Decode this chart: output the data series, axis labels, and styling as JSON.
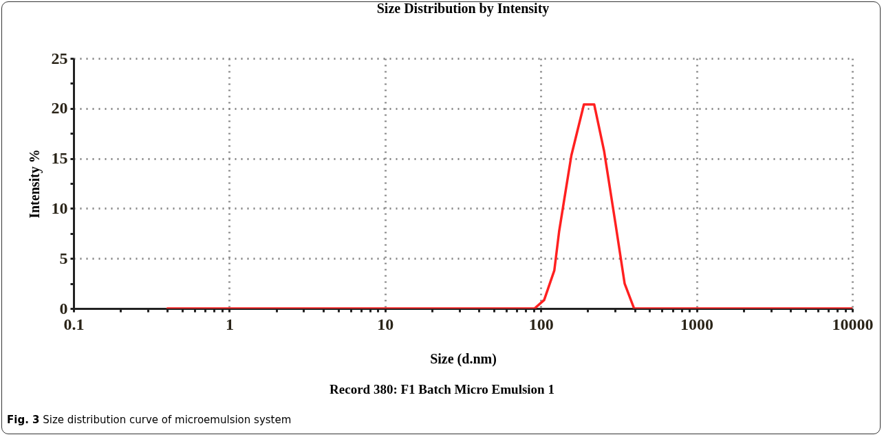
{
  "chart_data": {
    "type": "line",
    "title": "Size Distribution by Intensity",
    "xlabel": "Size (d.nm)",
    "ylabel": "Intensity %",
    "annotations": [
      "Record 380: F1 Batch Micro Emulsion 1",
      "Fig. 3 Size distribution curve of microemulsion system"
    ],
    "log": "x",
    "grid": true,
    "marker": "none",
    "line_style": "solid",
    "xlim": [
      0.1,
      10000
    ],
    "xticks": [
      0.1,
      {
        "value": 0.2,
        "label": null
      },
      {
        "value": 0.3,
        "label": null
      },
      {
        "value": 0.4,
        "label": null
      },
      {
        "value": 0.5,
        "label": null
      },
      {
        "value": 0.6,
        "label": null
      },
      {
        "value": 0.7,
        "label": null
      },
      {
        "value": 0.8,
        "label": null
      },
      {
        "value": 0.9,
        "label": null
      },
      1,
      {
        "value": 2,
        "label": null
      },
      {
        "value": 3,
        "label": null
      },
      {
        "value": 4,
        "label": null
      },
      {
        "value": 5,
        "label": null
      },
      {
        "value": 6,
        "label": null
      },
      {
        "value": 7,
        "label": null
      },
      {
        "value": 8,
        "label": null
      },
      {
        "value": 9,
        "label": null
      },
      10,
      {
        "value": 20,
        "label": null
      },
      {
        "value": 30,
        "label": null
      },
      {
        "value": 40,
        "label": null
      },
      {
        "value": 50,
        "label": null
      },
      {
        "value": 60,
        "label": null
      },
      {
        "value": 70,
        "label": null
      },
      {
        "value": 80,
        "label": null
      },
      {
        "value": 90,
        "label": null
      },
      100,
      {
        "value": 200,
        "label": null
      },
      {
        "value": 300,
        "label": null
      },
      {
        "value": 400,
        "label": null
      },
      {
        "value": 500,
        "label": null
      },
      {
        "value": 600,
        "label": null
      },
      {
        "value": 700,
        "label": null
      },
      {
        "value": 800,
        "label": null
      },
      {
        "value": 900,
        "label": null
      },
      1000,
      {
        "value": 2000,
        "label": null
      },
      {
        "value": 3000,
        "label": null
      },
      {
        "value": 4000,
        "label": null
      },
      {
        "value": 5000,
        "label": null
      },
      {
        "value": 6000,
        "label": null
      },
      {
        "value": 7000,
        "label": null
      },
      {
        "value": 8000,
        "label": null
      },
      {
        "value": 9000,
        "label": null
      },
      10000
    ],
    "ylim": [
      0,
      25
    ],
    "yticks": [
      0,
      {
        "value": 2.5,
        "label": null
      },
      5,
      {
        "value": 7.5,
        "label": null
      },
      10,
      {
        "value": 12.5,
        "label": null
      },
      15,
      {
        "value": 17.5,
        "label": null
      },
      20,
      {
        "value": 22.5,
        "label": null
      },
      25
    ],
    "series": [
      {
        "color": "#ff2020",
        "x": [
          0.4,
          91,
          105,
          122,
          131,
          142,
          157,
          189,
          220,
          255,
          302,
          345,
          397,
          10000
        ],
        "values": [
          0,
          0,
          0.85,
          3.8,
          7.7,
          11.1,
          15.3,
          20.4,
          20.4,
          15.7,
          8.4,
          2.5,
          0,
          0
        ]
      }
    ]
  }
}
